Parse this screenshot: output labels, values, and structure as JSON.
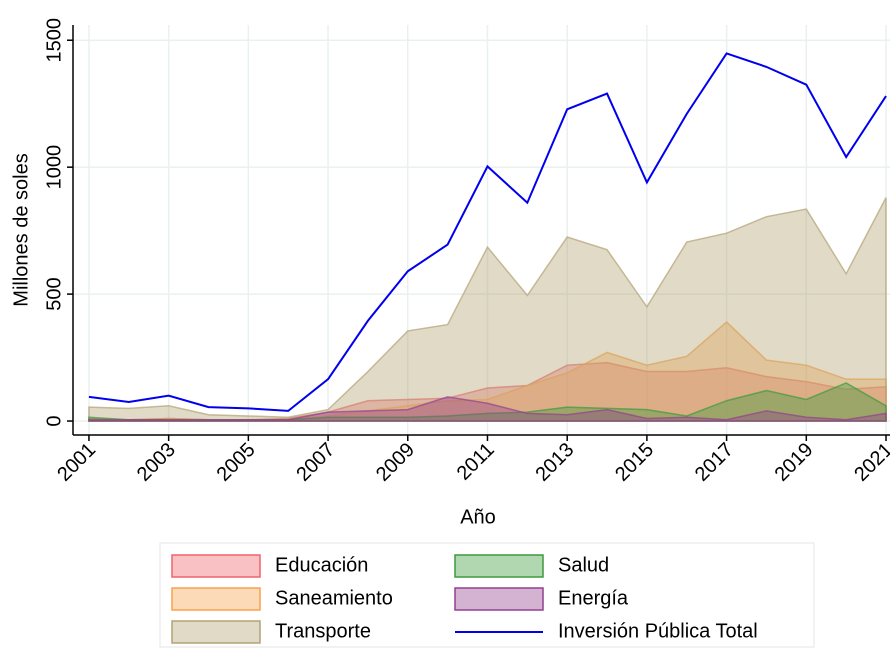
{
  "chart_data": {
    "type": "area",
    "x_label": "Año",
    "y_label": "Millones de soles",
    "x": [
      2001,
      2002,
      2003,
      2004,
      2005,
      2006,
      2007,
      2008,
      2009,
      2010,
      2011,
      2012,
      2013,
      2014,
      2015,
      2016,
      2017,
      2018,
      2019,
      2020,
      2021
    ],
    "xlim": [
      2000.6,
      2021.1
    ],
    "xticks": [
      2001,
      2003,
      2005,
      2007,
      2009,
      2011,
      2013,
      2015,
      2017,
      2019,
      2021
    ],
    "ylim": [
      -55,
      1560
    ],
    "yticks": [
      0,
      500,
      1000,
      1500
    ],
    "grid": true,
    "series": [
      {
        "name": "Educación",
        "type": "area",
        "color": "#f0646c",
        "values": [
          10,
          5,
          10,
          5,
          5,
          10,
          35,
          80,
          85,
          90,
          130,
          140,
          220,
          230,
          195,
          195,
          210,
          175,
          155,
          125,
          135
        ]
      },
      {
        "name": "Saneamiento",
        "type": "area",
        "color": "#f9a24b",
        "values": [
          5,
          5,
          10,
          5,
          5,
          5,
          20,
          40,
          60,
          80,
          85,
          140,
          190,
          270,
          220,
          255,
          390,
          240,
          220,
          165,
          165
        ]
      },
      {
        "name": "Transporte",
        "type": "area",
        "color": "#b2a373",
        "values": [
          55,
          50,
          60,
          25,
          20,
          15,
          45,
          195,
          355,
          380,
          685,
          495,
          725,
          675,
          450,
          705,
          740,
          805,
          835,
          580,
          880
        ]
      },
      {
        "name": "Salud",
        "type": "area",
        "color": "#3d9a3d",
        "values": [
          15,
          5,
          5,
          5,
          5,
          5,
          15,
          15,
          15,
          20,
          30,
          35,
          55,
          50,
          45,
          20,
          80,
          120,
          85,
          150,
          60
        ]
      },
      {
        "name": "Energía",
        "type": "area",
        "color": "#94408f",
        "values": [
          5,
          5,
          5,
          5,
          5,
          5,
          35,
          40,
          45,
          95,
          70,
          30,
          25,
          45,
          10,
          15,
          5,
          40,
          15,
          5,
          30
        ]
      },
      {
        "name": "Inversión Pública Total",
        "type": "line",
        "color": "#0000ee",
        "values": [
          95,
          75,
          100,
          55,
          50,
          40,
          165,
          395,
          590,
          695,
          1003,
          860,
          1228,
          1290,
          940,
          1210,
          1448,
          1395,
          1325,
          1040,
          1280
        ]
      }
    ]
  }
}
